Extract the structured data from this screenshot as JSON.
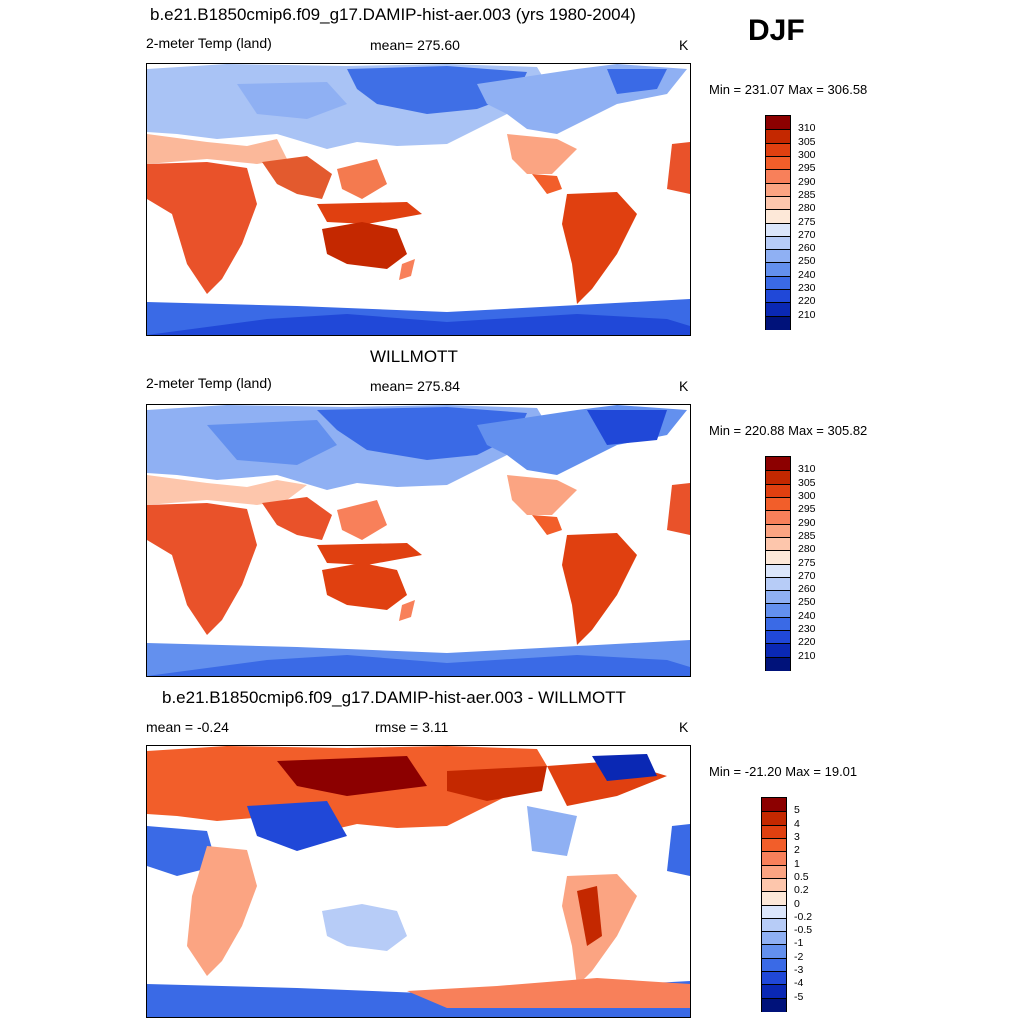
{
  "season": "DJF",
  "panels": [
    {
      "title": "b.e21.B1850cmip6.f09_g17.DAMIP-hist-aer.003 (yrs 1980-2004)",
      "left_label": "2-meter Temp (land)",
      "center_label": "mean= 275.60",
      "units": "K",
      "minmax": "Min = 231.07 Max = 306.58",
      "colorbar": {
        "ticks": [
          "310",
          "305",
          "300",
          "295",
          "290",
          "285",
          "280",
          "275",
          "270",
          "260",
          "250",
          "240",
          "230",
          "220",
          "210"
        ],
        "colors": [
          "#8c0000",
          "#c42800",
          "#e04010",
          "#f25e2a",
          "#f8805a",
          "#fba482",
          "#fdc6ac",
          "#fde8d8",
          "#dbe6fb",
          "#b7ccf7",
          "#8fb0f3",
          "#6390ee",
          "#3a6ae6",
          "#2048d8",
          "#0a28b4",
          "#00127a"
        ]
      }
    },
    {
      "title": "WILLMOTT",
      "left_label": "2-meter Temp (land)",
      "center_label": "mean= 275.84",
      "units": "K",
      "minmax": "Min = 220.88 Max = 305.82",
      "colorbar": {
        "ticks": [
          "310",
          "305",
          "300",
          "295",
          "290",
          "285",
          "280",
          "275",
          "270",
          "260",
          "250",
          "240",
          "230",
          "220",
          "210"
        ],
        "colors": [
          "#8c0000",
          "#c42800",
          "#e04010",
          "#f25e2a",
          "#f8805a",
          "#fba482",
          "#fdc6ac",
          "#fde8d8",
          "#dbe6fb",
          "#b7ccf7",
          "#8fb0f3",
          "#6390ee",
          "#3a6ae6",
          "#2048d8",
          "#0a28b4",
          "#00127a"
        ]
      }
    },
    {
      "title": "b.e21.B1850cmip6.f09_g17.DAMIP-hist-aer.003 - WILLMOTT",
      "left_label": "mean =  -0.24",
      "center_label": "rmse =   3.11",
      "units": "K",
      "minmax": "Min = -21.20 Max =  19.01",
      "colorbar": {
        "ticks": [
          "5",
          "4",
          "3",
          "2",
          "1",
          "0.5",
          "0.2",
          "0",
          "-0.2",
          "-0.5",
          "-1",
          "-2",
          "-3",
          "-4",
          "-5"
        ],
        "colors": [
          "#8c0000",
          "#c42800",
          "#e04010",
          "#f25e2a",
          "#f8805a",
          "#fba482",
          "#fdc6ac",
          "#fde8d8",
          "#dbe6fb",
          "#b7ccf7",
          "#8fb0f3",
          "#6390ee",
          "#3a6ae6",
          "#2048d8",
          "#0a28b4",
          "#00127a"
        ]
      }
    }
  ]
}
